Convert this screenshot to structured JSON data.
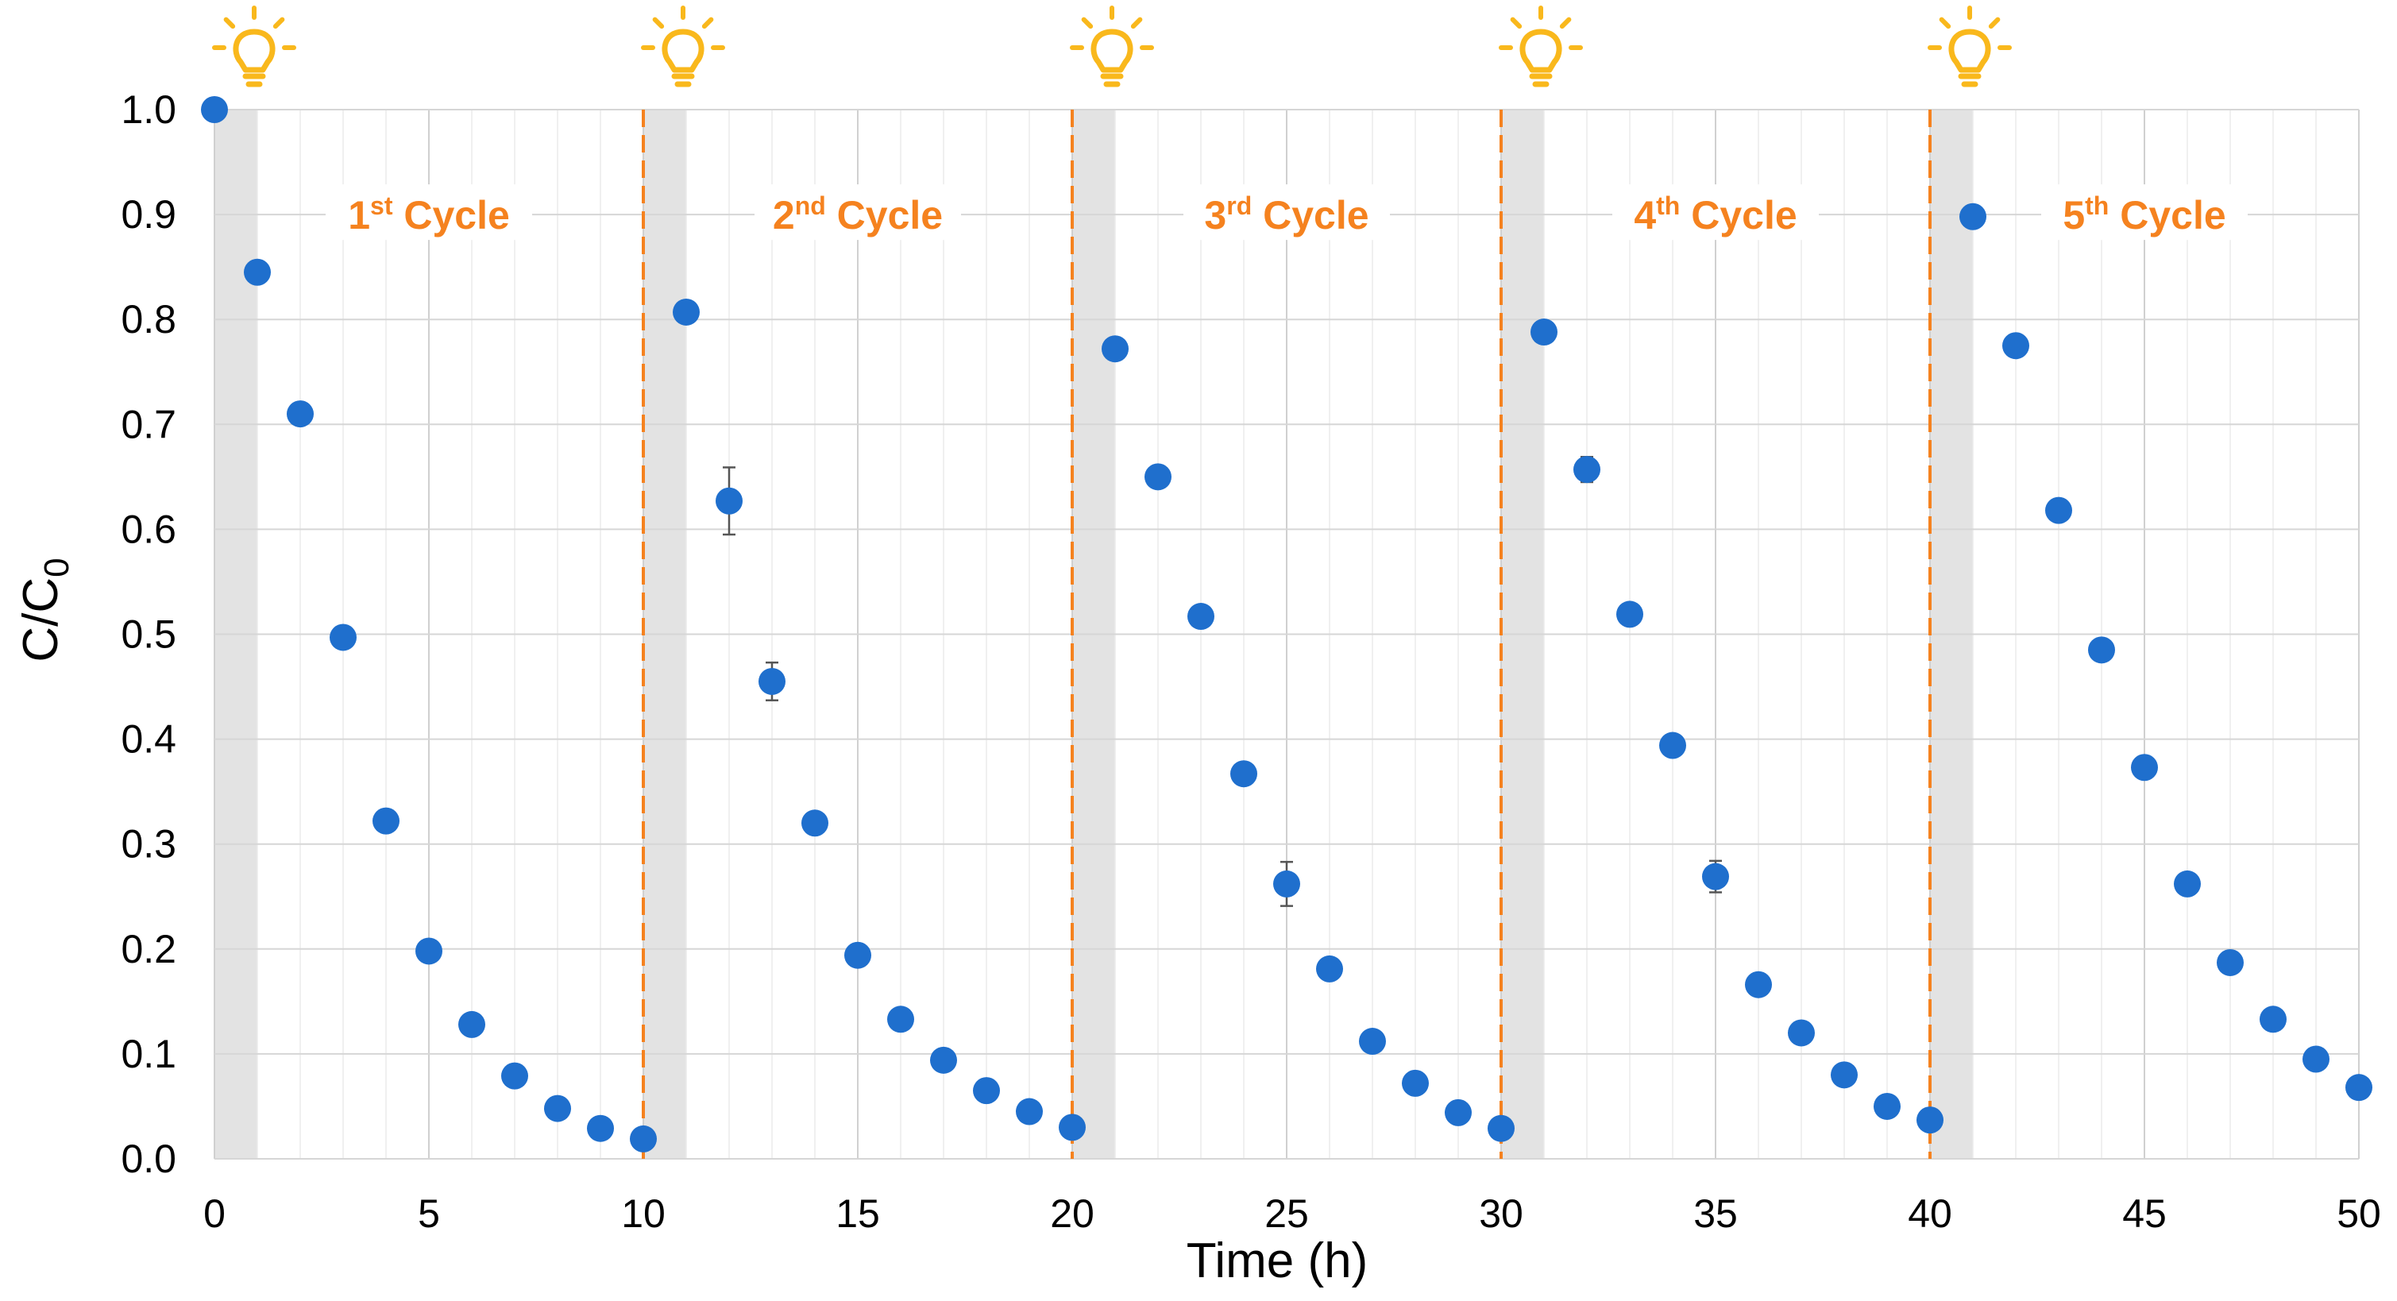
{
  "chart_data": {
    "type": "scatter",
    "title": "",
    "xlabel": "Time (h)",
    "ylabel": {
      "main": "C/C",
      "sub": "0"
    },
    "xlim": [
      0,
      50
    ],
    "ylim": [
      0,
      1.0
    ],
    "x_ticks": [
      "0",
      "5",
      "10",
      "15",
      "20",
      "25",
      "30",
      "35",
      "40",
      "45",
      "50"
    ],
    "y_ticks": [
      "0.0",
      "0.1",
      "0.2",
      "0.3",
      "0.4",
      "0.5",
      "0.6",
      "0.7",
      "0.8",
      "0.9",
      "1.0"
    ],
    "grid": true,
    "legend": "none",
    "point_color": "#1f6fcd",
    "accent_color": "#f5821f",
    "shade_color": "#e3e3e3",
    "icon": "lightbulb-icon",
    "icon_color": "#f9b81c",
    "light_on_times": [
      0,
      10,
      20,
      30,
      40
    ],
    "shaded_intervals": [
      [
        0,
        1
      ],
      [
        10,
        11
      ],
      [
        20,
        21
      ],
      [
        30,
        31
      ],
      [
        40,
        41
      ]
    ],
    "cycle_labels": [
      {
        "num": "1",
        "sup": "st",
        "word": " Cycle",
        "x_center": 5,
        "y": 0.9
      },
      {
        "num": "2",
        "sup": "nd",
        "word": " Cycle",
        "x_center": 15,
        "y": 0.9
      },
      {
        "num": "3",
        "sup": "rd",
        "word": " Cycle",
        "x_center": 25,
        "y": 0.9
      },
      {
        "num": "4",
        "sup": "th",
        "word": " Cycle",
        "x_center": 35,
        "y": 0.9
      },
      {
        "num": "5",
        "sup": "th",
        "word": " Cycle",
        "x_center": 45,
        "y": 0.9
      }
    ],
    "series": [
      {
        "x": [
          0,
          1,
          2,
          3,
          4,
          5,
          6,
          7,
          8,
          9,
          10,
          11,
          12,
          13,
          14,
          15,
          16,
          17,
          18,
          19,
          20,
          21,
          22,
          23,
          24,
          25,
          26,
          27,
          28,
          29,
          30,
          31,
          32,
          33,
          34,
          35,
          36,
          37,
          38,
          39,
          40,
          41,
          42,
          43,
          44,
          45,
          46,
          47,
          48,
          49,
          50
        ],
        "y": [
          1.0,
          0.845,
          0.71,
          0.497,
          0.322,
          0.198,
          0.128,
          0.079,
          0.048,
          0.029,
          0.019,
          0.807,
          0.627,
          0.455,
          0.32,
          0.194,
          0.133,
          0.094,
          0.065,
          0.045,
          0.03,
          0.772,
          0.65,
          0.517,
          0.367,
          0.262,
          0.181,
          0.112,
          0.072,
          0.044,
          0.029,
          0.788,
          0.657,
          0.519,
          0.394,
          0.269,
          0.166,
          0.12,
          0.08,
          0.05,
          0.037,
          0.898,
          0.775,
          0.618,
          0.485,
          0.373,
          0.262,
          0.187,
          0.133,
          0.095,
          0.068
        ],
        "y_err": [
          0,
          0,
          0.01,
          0,
          0,
          0,
          0,
          0,
          0,
          0,
          0,
          0,
          0.032,
          0.018,
          0,
          0,
          0,
          0,
          0,
          0,
          0,
          0,
          0,
          0,
          0,
          0.021,
          0,
          0,
          0,
          0,
          0,
          0,
          0.012,
          0.01,
          0,
          0.015,
          0,
          0,
          0,
          0,
          0,
          0.01,
          0,
          0,
          0,
          0,
          0,
          0,
          0,
          0,
          0
        ]
      }
    ]
  }
}
